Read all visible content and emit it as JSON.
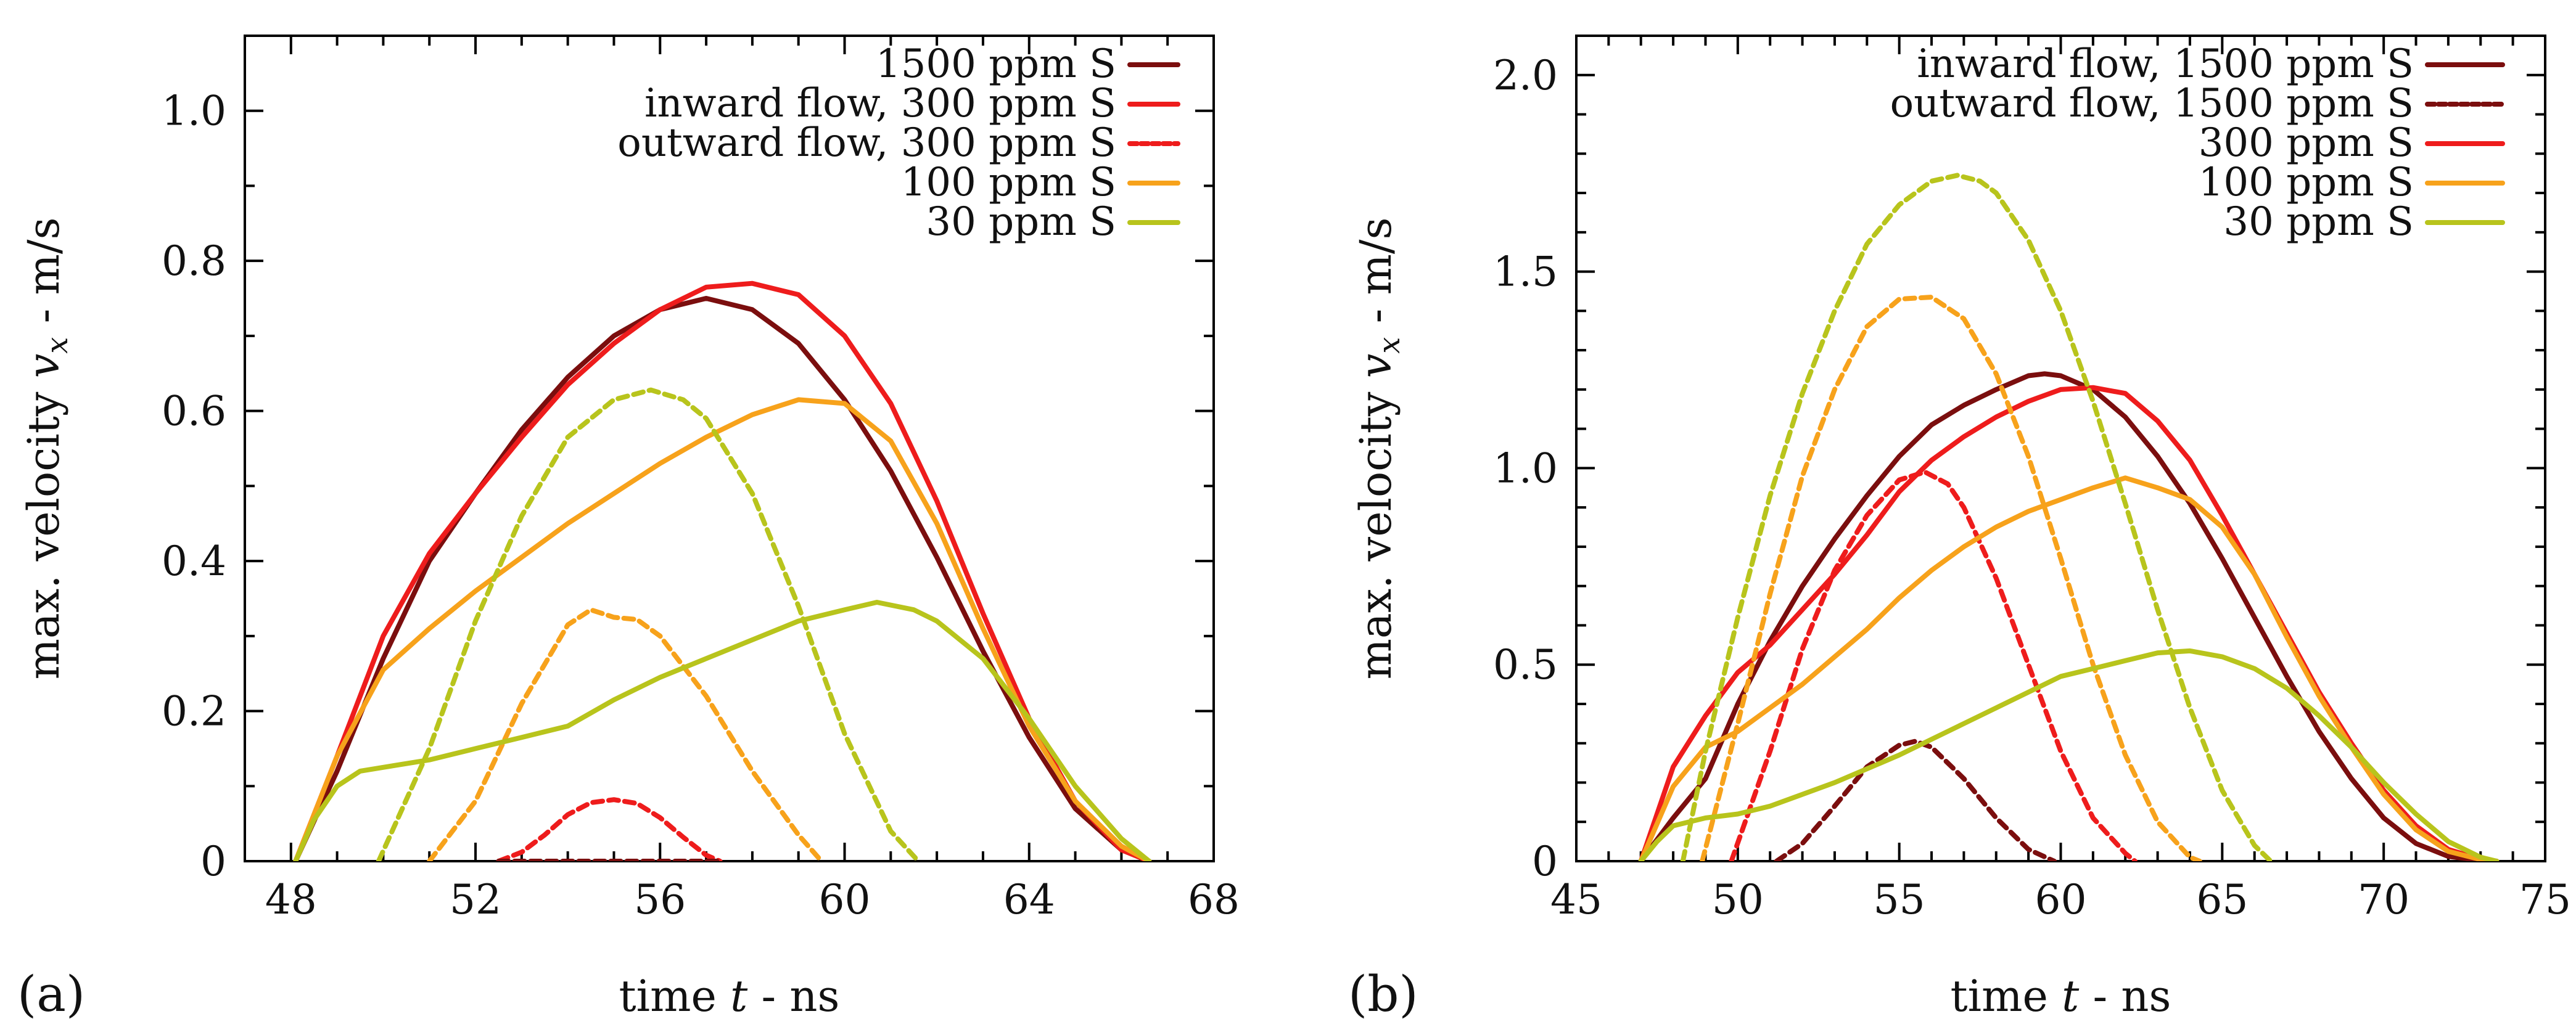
{
  "chart_data": [
    {
      "panel_label": "(a)",
      "type": "line",
      "xlabel": "time t - ns",
      "ylabel": "max. velocity v_x - m/s",
      "xlabel_parts": {
        "pre": "time ",
        "var": "t",
        "post": " - ns"
      },
      "ylabel_parts": {
        "pre": "max. velocity ",
        "var": "v",
        "sub": "x",
        "post": " - m/s"
      },
      "xlim": [
        47,
        68
      ],
      "ylim": [
        0,
        1.1
      ],
      "xticks": [
        48,
        52,
        56,
        60,
        64,
        68
      ],
      "xtick_labels": [
        "48",
        "52",
        "56",
        "60",
        "64",
        "68"
      ],
      "yticks": [
        0,
        0.2,
        0.4,
        0.6,
        0.8,
        1.0
      ],
      "ytick_labels": [
        "0",
        "0.2",
        "0.4",
        "0.6",
        "0.8",
        "1.0"
      ],
      "xminor": [
        47,
        49,
        50,
        51,
        53,
        54,
        55,
        57,
        58,
        59,
        61,
        62,
        63,
        65,
        66,
        67
      ],
      "yminor": [
        0.1,
        0.3,
        0.5,
        0.7,
        0.9
      ],
      "legend_position": "top-right",
      "series": [
        {
          "name": "1500 ppm S",
          "color": "#7b0e0e",
          "dash": "solid",
          "in_legend": true,
          "x": [
            48.1,
            49,
            50,
            51,
            52,
            53,
            54,
            55,
            56,
            57,
            58,
            59,
            60,
            61,
            62,
            63,
            64,
            65,
            66,
            66.6
          ],
          "y": [
            0,
            0.12,
            0.27,
            0.4,
            0.49,
            0.575,
            0.645,
            0.7,
            0.735,
            0.75,
            0.735,
            0.69,
            0.615,
            0.52,
            0.405,
            0.28,
            0.165,
            0.07,
            0.015,
            0
          ]
        },
        {
          "name": "inward flow, 300 ppm S",
          "color": "#ee1c1c",
          "dash": "solid",
          "in_legend": true,
          "x": [
            48.1,
            49,
            50,
            51,
            52,
            53,
            54,
            55,
            56,
            57,
            58,
            59,
            60,
            61,
            62,
            63,
            64,
            65,
            66,
            66.6
          ],
          "y": [
            0,
            0.14,
            0.3,
            0.41,
            0.49,
            0.565,
            0.635,
            0.69,
            0.735,
            0.765,
            0.77,
            0.755,
            0.7,
            0.61,
            0.48,
            0.33,
            0.19,
            0.08,
            0.015,
            0
          ]
        },
        {
          "name": "outward flow, 300 ppm S",
          "color": "#ee1c1c",
          "dash": "dashed",
          "in_legend": true,
          "x": [
            52.5,
            53,
            53.5,
            54,
            54.5,
            55,
            55.5,
            56,
            56.5,
            57,
            57.3
          ],
          "y": [
            0,
            0.012,
            0.035,
            0.062,
            0.078,
            0.082,
            0.077,
            0.058,
            0.032,
            0.008,
            0
          ]
        },
        {
          "name": "100 ppm S",
          "color": "#f7a21b",
          "dash": "solid",
          "in_legend": true,
          "x": [
            48.1,
            49,
            50,
            51,
            52,
            53,
            54,
            55,
            56,
            57,
            58,
            59,
            60,
            61,
            62,
            63,
            64,
            65,
            66,
            66.6
          ],
          "y": [
            0,
            0.14,
            0.255,
            0.31,
            0.36,
            0.405,
            0.45,
            0.49,
            0.53,
            0.565,
            0.595,
            0.615,
            0.61,
            0.56,
            0.45,
            0.31,
            0.18,
            0.08,
            0.02,
            0
          ]
        },
        {
          "name": "100 ppm S outward",
          "color": "#f7a21b",
          "dash": "dashed",
          "in_legend": false,
          "x": [
            51,
            52,
            53,
            54,
            54.5,
            55,
            55.5,
            56,
            57,
            58,
            59,
            59.5
          ],
          "y": [
            0,
            0.08,
            0.21,
            0.315,
            0.335,
            0.325,
            0.322,
            0.3,
            0.22,
            0.12,
            0.035,
            0
          ]
        },
        {
          "name": "30 ppm S",
          "color": "#b8c41c",
          "dash": "solid",
          "in_legend": true,
          "x": [
            48.1,
            48.5,
            49,
            49.5,
            50,
            51,
            52,
            53,
            54,
            55,
            56,
            57,
            58,
            59,
            60,
            60.7,
            61.5,
            62,
            63,
            64,
            65,
            66,
            66.6
          ],
          "y": [
            0,
            0.055,
            0.1,
            0.12,
            0.125,
            0.135,
            0.15,
            0.165,
            0.18,
            0.215,
            0.245,
            0.27,
            0.295,
            0.32,
            0.335,
            0.345,
            0.335,
            0.32,
            0.27,
            0.19,
            0.1,
            0.03,
            0
          ]
        },
        {
          "name": "30 ppm S outward",
          "color": "#b8c41c",
          "dash": "dashed",
          "in_legend": false,
          "x": [
            49.9,
            51,
            52,
            53,
            54,
            55,
            55.8,
            56.5,
            57,
            58,
            59,
            60,
            61,
            61.6
          ],
          "y": [
            0,
            0.15,
            0.32,
            0.46,
            0.565,
            0.615,
            0.628,
            0.615,
            0.59,
            0.49,
            0.34,
            0.17,
            0.04,
            0
          ]
        },
        {
          "name": "1500 ppm S outward",
          "color": "#7b0e0e",
          "dash": "dashed",
          "in_legend": false,
          "x": [
            52.5,
            57.3
          ],
          "y": [
            0,
            0
          ]
        }
      ]
    },
    {
      "panel_label": "(b)",
      "type": "line",
      "xlabel": "time t - ns",
      "ylabel": "max. velocity v_x - m/s",
      "xlabel_parts": {
        "pre": "time ",
        "var": "t",
        "post": " - ns"
      },
      "ylabel_parts": {
        "pre": "max. velocity ",
        "var": "v",
        "sub": "x",
        "post": " - m/s"
      },
      "xlim": [
        45,
        75
      ],
      "ylim": [
        0,
        2.1
      ],
      "xticks": [
        45,
        50,
        55,
        60,
        65,
        70,
        75
      ],
      "xtick_labels": [
        "45",
        "50",
        "55",
        "60",
        "65",
        "70",
        "75"
      ],
      "yticks": [
        0,
        0.5,
        1.0,
        1.5,
        2.0
      ],
      "ytick_labels": [
        "0",
        "0.5",
        "1.0",
        "1.5",
        "2.0"
      ],
      "xminor": [
        46,
        47,
        48,
        49,
        51,
        52,
        53,
        54,
        56,
        57,
        58,
        59,
        61,
        62,
        63,
        64,
        66,
        67,
        68,
        69,
        71,
        72,
        73,
        74
      ],
      "yminor": [
        0.1,
        0.2,
        0.3,
        0.4,
        0.6,
        0.7,
        0.8,
        0.9,
        1.1,
        1.2,
        1.3,
        1.4,
        1.6,
        1.7,
        1.8,
        1.9
      ],
      "legend_position": "top-right",
      "series": [
        {
          "name": "inward flow, 1500 ppm S",
          "color": "#7b0e0e",
          "dash": "solid",
          "in_legend": true,
          "x": [
            47,
            48,
            49,
            50,
            51,
            52,
            53,
            54,
            55,
            56,
            57,
            58,
            59,
            59.5,
            60,
            61,
            62,
            63,
            64,
            65,
            66,
            67,
            68,
            69,
            70,
            71,
            72,
            73,
            73.5
          ],
          "y": [
            0,
            0.11,
            0.21,
            0.4,
            0.56,
            0.7,
            0.82,
            0.93,
            1.03,
            1.11,
            1.16,
            1.2,
            1.235,
            1.24,
            1.235,
            1.2,
            1.13,
            1.03,
            0.91,
            0.77,
            0.62,
            0.47,
            0.33,
            0.21,
            0.11,
            0.045,
            0.012,
            0.002,
            0
          ]
        },
        {
          "name": "outward flow, 1500 ppm S",
          "color": "#7b0e0e",
          "dash": "dashed",
          "in_legend": true,
          "x": [
            51.2,
            52,
            53,
            54,
            55,
            55.5,
            56,
            57,
            58,
            59,
            59.8
          ],
          "y": [
            0,
            0.045,
            0.14,
            0.24,
            0.295,
            0.305,
            0.29,
            0.21,
            0.11,
            0.03,
            0
          ]
        },
        {
          "name": "300 ppm S",
          "color": "#ee1c1c",
          "dash": "solid",
          "in_legend": true,
          "x": [
            47,
            48,
            49,
            50,
            51,
            52,
            53,
            54,
            55,
            56,
            57,
            58,
            59,
            60,
            61,
            62,
            63,
            64,
            65,
            66,
            67,
            68,
            69,
            70,
            71,
            72,
            73,
            73.5
          ],
          "y": [
            0,
            0.24,
            0.37,
            0.48,
            0.55,
            0.64,
            0.73,
            0.83,
            0.94,
            1.02,
            1.08,
            1.13,
            1.17,
            1.2,
            1.205,
            1.19,
            1.12,
            1.02,
            0.88,
            0.73,
            0.58,
            0.43,
            0.3,
            0.18,
            0.09,
            0.03,
            0.005,
            0
          ]
        },
        {
          "name": "300 ppm S outward",
          "color": "#ee1c1c",
          "dash": "dashed",
          "in_legend": false,
          "x": [
            49.8,
            51,
            52,
            53,
            54,
            55,
            55.8,
            56.5,
            57,
            58,
            59,
            60,
            61,
            62,
            62.3
          ],
          "y": [
            0,
            0.28,
            0.54,
            0.74,
            0.88,
            0.97,
            0.99,
            0.96,
            0.9,
            0.72,
            0.5,
            0.28,
            0.11,
            0.02,
            0
          ]
        },
        {
          "name": "100 ppm S",
          "color": "#f7a21b",
          "dash": "solid",
          "in_legend": true,
          "x": [
            47,
            48,
            49,
            50,
            51,
            52,
            53,
            54,
            55,
            56,
            57,
            58,
            59,
            60,
            61,
            62,
            63,
            64,
            65,
            66,
            67,
            68,
            69,
            70,
            71,
            72,
            73,
            73.5
          ],
          "y": [
            0,
            0.19,
            0.29,
            0.33,
            0.39,
            0.45,
            0.52,
            0.59,
            0.67,
            0.74,
            0.8,
            0.85,
            0.89,
            0.92,
            0.95,
            0.975,
            0.95,
            0.92,
            0.85,
            0.73,
            0.57,
            0.42,
            0.29,
            0.17,
            0.08,
            0.025,
            0.004,
            0
          ]
        },
        {
          "name": "100 ppm S outward",
          "color": "#f7a21b",
          "dash": "dashed",
          "in_legend": false,
          "x": [
            48.9,
            50,
            51,
            52,
            53,
            54,
            55,
            56,
            57,
            58,
            59,
            60,
            61,
            62,
            63,
            64,
            64.3
          ],
          "y": [
            0,
            0.35,
            0.68,
            0.98,
            1.2,
            1.36,
            1.43,
            1.435,
            1.38,
            1.24,
            1.03,
            0.77,
            0.5,
            0.27,
            0.1,
            0.01,
            0
          ]
        },
        {
          "name": "30 ppm S",
          "color": "#b8c41c",
          "dash": "solid",
          "in_legend": true,
          "x": [
            47,
            47.5,
            48,
            49,
            50,
            51,
            52,
            53,
            54,
            55,
            56,
            57,
            58,
            59,
            60,
            61,
            62,
            63,
            64,
            65,
            66,
            67,
            68,
            69,
            70,
            71,
            72,
            73,
            73.5
          ],
          "y": [
            0,
            0.05,
            0.09,
            0.11,
            0.12,
            0.14,
            0.17,
            0.2,
            0.235,
            0.27,
            0.31,
            0.35,
            0.39,
            0.43,
            0.47,
            0.49,
            0.51,
            0.53,
            0.535,
            0.52,
            0.49,
            0.44,
            0.37,
            0.29,
            0.2,
            0.12,
            0.05,
            0.01,
            0
          ]
        },
        {
          "name": "30 ppm S outward",
          "color": "#b8c41c",
          "dash": "dashed",
          "in_legend": false,
          "x": [
            48.3,
            49,
            50,
            51,
            52,
            53,
            54,
            55,
            56,
            56.8,
            57.5,
            58,
            59,
            60,
            61,
            62,
            63,
            64,
            65,
            66,
            66.5
          ],
          "y": [
            0,
            0.28,
            0.62,
            0.93,
            1.19,
            1.4,
            1.57,
            1.67,
            1.73,
            1.745,
            1.73,
            1.7,
            1.58,
            1.4,
            1.17,
            0.91,
            0.64,
            0.39,
            0.18,
            0.04,
            0
          ]
        }
      ]
    }
  ]
}
